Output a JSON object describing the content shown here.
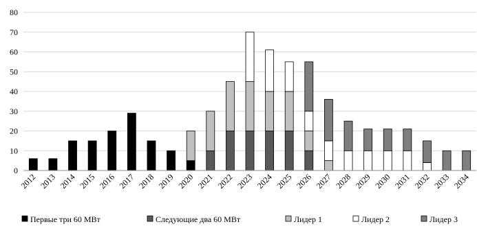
{
  "chart_data": {
    "type": "bar",
    "stacked": true,
    "title": "",
    "xlabel": "",
    "ylabel": "",
    "ylim": [
      0,
      80
    ],
    "y_ticks": [
      0,
      10,
      20,
      30,
      40,
      50,
      60,
      70,
      80
    ],
    "grid": true,
    "legend_position": "bottom",
    "categories": [
      "2012",
      "2013",
      "2014",
      "2015",
      "2016",
      "2017",
      "2018",
      "2019",
      "2020",
      "2021",
      "2022",
      "2023",
      "2024",
      "2025",
      "2026",
      "2027",
      "2028",
      "2029",
      "2030",
      "2031",
      "2032",
      "2033",
      "2034"
    ],
    "series": [
      {
        "name": "Первые три 60 МВт",
        "color": "#000000",
        "values": [
          6,
          6,
          15,
          15,
          20,
          29,
          15,
          10,
          5,
          0,
          0,
          0,
          0,
          0,
          0,
          0,
          0,
          0,
          0,
          0,
          0,
          0,
          0
        ]
      },
      {
        "name": "Следующие два 60 МВт",
        "color": "#595959",
        "values": [
          0,
          0,
          0,
          0,
          0,
          0,
          0,
          0,
          0,
          10,
          20,
          20,
          20,
          20,
          10,
          0,
          0,
          0,
          0,
          0,
          0,
          0,
          0
        ]
      },
      {
        "name": "Лидер 1",
        "color": "#c0c0c0",
        "values": [
          0,
          0,
          0,
          0,
          0,
          0,
          0,
          0,
          15,
          20,
          25,
          25,
          20,
          20,
          10,
          5,
          0,
          0,
          0,
          0,
          0,
          0,
          0
        ]
      },
      {
        "name": "Лидер 2",
        "color": "#ffffff",
        "values": [
          0,
          0,
          0,
          0,
          0,
          0,
          0,
          0,
          0,
          0,
          0,
          25,
          21,
          15,
          10,
          10,
          10,
          10,
          10,
          10,
          4,
          0,
          0
        ]
      },
      {
        "name": "Лидер 3",
        "color": "#7f7f7f",
        "values": [
          0,
          0,
          0,
          0,
          0,
          0,
          0,
          0,
          0,
          0,
          0,
          0,
          0,
          0,
          25,
          21,
          15,
          11,
          11,
          11,
          11,
          10,
          10
        ]
      }
    ]
  }
}
